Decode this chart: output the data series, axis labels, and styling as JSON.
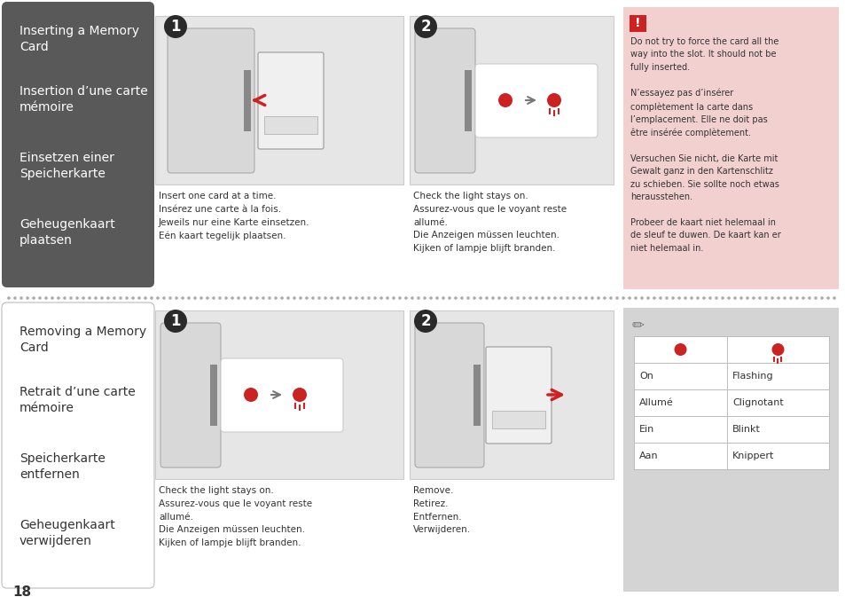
{
  "bg_color": "#ffffff",
  "top_left_bg": "#595959",
  "top_left_texts": [
    "Inserting a Memory\nCard",
    "Insertion d’une carte\nmémoire",
    "Einsetzen einer\nSpeicherkarte",
    "Geheugenkaart\nplaatsen"
  ],
  "bottom_left_bg": "#ffffff",
  "bottom_left_border": "#bbbbbb",
  "bottom_left_texts": [
    "Removing a Memory\nCard",
    "Retrait d’une carte\nmémoire",
    "Speicherkarte\nentfernen",
    "Geheugenkaart\nverwijderen"
  ],
  "warning_bg": "#f2d0d0",
  "warning_text": "Do not try to force the card all the\nway into the slot. It should not be\nfully inserted.\n\nN’essayez pas d’insérer\ncomplètement la carte dans\nl’emplacement. Elle ne doit pas\nêtre insérée complètement.\n\nVersuchen Sie nicht, die Karte mit\nGewalt ganz in den Kartenschlitz\nzu schieben. Sie sollte noch etwas\nherausstehen.\n\nProbeer de kaart niet helemaal in\nde sleuf te duwen. De kaart kan er\nniet helemaal in.",
  "note_bg": "#d4d4d4",
  "table_rows": [
    [
      "On",
      "Flashing"
    ],
    [
      "Allumé",
      "Clignotant"
    ],
    [
      "Ein",
      "Blinkt"
    ],
    [
      "Aan",
      "Knippert"
    ]
  ],
  "step1_insert_text": "Insert one card at a time.\nInsérez une carte à la fois.\nJeweils nur eine Karte einsetzen.\nEén kaart tegelijk plaatsen.",
  "step2_insert_text": "Check the light stays on.\nAssurez-vous que le voyant reste\nallumé.\nDie Anzeigen müssen leuchten.\nKijken of lampje blijft branden.",
  "step1_remove_text": "Check the light stays on.\nAssurez-vous que le voyant reste\nallumé.\nDie Anzeigen müssen leuchten.\nKijken of lampje blijft branden.",
  "step2_remove_text": "Remove.\nRetirez.\nEntfernen.\nVerwijderen.",
  "page_number": "18",
  "divider_color": "#aaaaaa",
  "text_color_dark": "#333333",
  "text_color_white": "#ffffff",
  "step_circle_bg": "#2a2a2a",
  "img_box_bg": "#e6e6e6",
  "img_box_border": "#cccccc",
  "red_color": "#cc2222"
}
